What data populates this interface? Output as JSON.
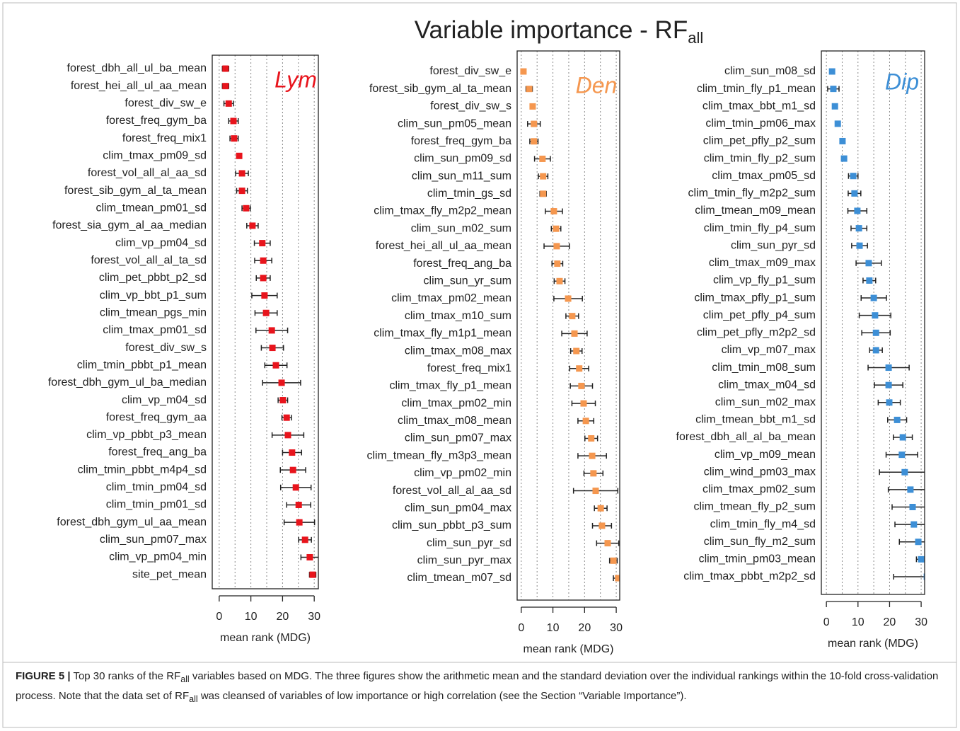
{
  "title": {
    "main": "Variable importance - RF",
    "sub": "all"
  },
  "chart_data": [
    {
      "type": "dot",
      "title": "Lym",
      "color": "#e8141c",
      "xlabel": "mean rank (MDG)",
      "xlim": [
        -2.2,
        31.3
      ],
      "xticks": [
        0,
        10,
        20,
        30
      ],
      "xgrid": [
        0,
        5,
        10,
        15,
        20,
        25,
        30
      ],
      "categories": [
        "forest_dbh_all_ul_ba_mean",
        "forest_hei_all_ul_aa_mean",
        "forest_div_sw_e",
        "forest_freq_gym_ba",
        "forest_freq_mix1",
        "clim_tmax_pm09_sd",
        "forest_vol_all_al_aa_sd",
        "forest_sib_gym_al_ta_mean",
        "clim_tmean_pm01_sd",
        "forest_sia_gym_al_aa_median",
        "clim_vp_pm04_sd",
        "forest_vol_all_al_ta_sd",
        "clim_pet_pbbt_p2_sd",
        "clim_vp_bbt_p1_sum",
        "clim_tmean_pgs_min",
        "clim_tmax_pm01_sd",
        "forest_div_sw_s",
        "clim_tmin_pbbt_p1_mean",
        "forest_dbh_gym_ul_ba_median",
        "clim_vp_m04_sd",
        "forest_freq_gym_aa",
        "clim_vp_pbbt_p3_mean",
        "forest_freq_ang_ba",
        "clim_tmin_pbbt_m4p4_sd",
        "clim_tmin_pm04_sd",
        "clim_tmin_pm01_sd",
        "forest_dbh_gym_ul_aa_mean",
        "clim_sun_pm07_max",
        "clim_vp_pm04_min",
        "site_pet_mean"
      ],
      "values": [
        2.0,
        2.0,
        3.0,
        4.5,
        4.7,
        6.3,
        7.2,
        7.2,
        8.5,
        10.5,
        13.6,
        13.9,
        13.9,
        14.3,
        14.8,
        16.6,
        16.8,
        17.9,
        19.7,
        20.1,
        21.3,
        21.7,
        23.0,
        23.3,
        24.2,
        25.1,
        25.3,
        27.1,
        28.6,
        29.5
      ],
      "errors": [
        1.0,
        1.0,
        1.5,
        1.5,
        1.3,
        0.5,
        2.0,
        1.7,
        1.3,
        1.8,
        2.5,
        2.7,
        2.2,
        4.0,
        3.5,
        5.0,
        3.5,
        3.5,
        6.0,
        1.5,
        1.5,
        5.0,
        3.0,
        4.0,
        4.8,
        3.8,
        4.8,
        2.0,
        2.8,
        1.0
      ]
    },
    {
      "type": "dot",
      "title": "Den",
      "color": "#f5974f",
      "xlabel": "mean rank (MDG)",
      "xlim": [
        -1.3,
        31.1
      ],
      "xticks": [
        0,
        10,
        20,
        30
      ],
      "xgrid": [
        0,
        5,
        10,
        15,
        20,
        25,
        30
      ],
      "categories": [
        "forest_div_sw_e",
        "forest_sib_gym_al_ta_mean",
        "forest_div_sw_s",
        "clim_sun_pm05_mean",
        "forest_freq_gym_ba",
        "clim_sun_pm09_sd",
        "clim_sun_m11_sum",
        "clim_tmin_gs_sd",
        "clim_tmax_fly_m2p2_mean",
        "clim_sun_m02_sum",
        "forest_hei_all_ul_aa_mean",
        "forest_freq_ang_ba",
        "clim_sun_yr_sum",
        "clim_tmax_pm02_mean",
        "clim_tmax_m10_sum",
        "clim_tmax_fly_m1p1_mean",
        "clim_tmax_m08_max",
        "forest_freq_mix1",
        "clim_tmax_fly_p1_mean",
        "clim_tmax_pm02_min",
        "clim_tmax_m08_mean",
        "clim_sun_pm07_max",
        "clim_tmean_fly_m3p3_mean",
        "clim_vp_pm02_min",
        "forest_vol_all_al_aa_sd",
        "clim_sun_pm04_max",
        "clim_sun_pbbt_p3_sum",
        "clim_sun_pyr_sd",
        "clim_sun_pyr_max",
        "clim_tmean_m07_sd"
      ],
      "values": [
        0.7,
        2.5,
        3.6,
        4.0,
        4.0,
        6.7,
        6.9,
        6.9,
        10.3,
        11.0,
        11.2,
        11.4,
        12.1,
        14.8,
        16.1,
        16.8,
        17.4,
        18.3,
        19.0,
        19.7,
        20.4,
        22.1,
        22.4,
        22.8,
        23.5,
        25.1,
        25.5,
        27.3,
        29.1,
        30.6
      ],
      "errors": [
        0.5,
        1.0,
        0.5,
        2.0,
        1.3,
        2.5,
        1.5,
        1.0,
        2.7,
        1.5,
        4.0,
        1.7,
        1.7,
        4.5,
        2.0,
        4.0,
        1.8,
        3.0,
        3.5,
        3.7,
        2.5,
        2.0,
        4.5,
        3.0,
        7.0,
        2.0,
        3.0,
        3.5,
        1.2,
        1.5
      ]
    },
    {
      "type": "dot",
      "title": "Dip",
      "color": "#3d8fd6",
      "xlabel": "mean rank (MDG)",
      "xlim": [
        -1.6,
        31.1
      ],
      "xticks": [
        0,
        10,
        20,
        30
      ],
      "xgrid": [
        0,
        5,
        10,
        15,
        20,
        25,
        30
      ],
      "categories": [
        "clim_sun_m08_sd",
        "clim_tmin_fly_p1_mean",
        "clim_tmax_bbt_m1_sd",
        "clim_tmin_pm06_max",
        "clim_pet_pfly_p2_sum",
        "clim_tmin_fly_p2_sum",
        "clim_tmax_pm05_sd",
        "clim_tmin_fly_m2p2_sum",
        "clim_tmean_m09_mean",
        "clim_tmin_fly_p4_sum",
        "clim_sun_pyr_sd",
        "clim_tmax_m09_max",
        "clim_vp_fly_p1_sum",
        "clim_tmax_pfly_p1_sum",
        "clim_pet_pfly_p4_sum",
        "clim_pet_pfly_m2p2_sd",
        "clim_vp_m07_max",
        "clim_tmin_m08_sum",
        "clim_tmax_m04_sd",
        "clim_sun_m02_max",
        "clim_tmean_bbt_m1_sd",
        "forest_dbh_all_al_ba_mean",
        "clim_vp_m09_mean",
        "clim_wind_pm03_max",
        "clim_tmax_pm02_sum",
        "clim_tmean_fly_p2_sum",
        "clim_tmin_fly_m4_sd",
        "clim_sun_fly_m2_sum",
        "clim_tmin_pm03_mean",
        "clim_tmax_pbbt_m2p2_sd"
      ],
      "values": [
        1.8,
        2.2,
        2.7,
        3.6,
        5.1,
        5.6,
        8.5,
        8.9,
        9.8,
        10.3,
        10.5,
        13.4,
        13.6,
        15.0,
        15.4,
        15.7,
        15.7,
        19.7,
        19.7,
        19.9,
        22.4,
        24.2,
        23.9,
        24.8,
        26.6,
        27.3,
        27.7,
        29.1,
        30.0,
        31.8
      ],
      "errors": [
        0.3,
        1.8,
        0.3,
        0.5,
        0.5,
        0.8,
        1.5,
        2.0,
        3.0,
        2.5,
        2.5,
        4.0,
        2.0,
        4.0,
        5.0,
        4.5,
        2.0,
        6.5,
        4.5,
        3.5,
        3.0,
        3.0,
        5.0,
        8.0,
        7.0,
        6.5,
        6.0,
        6.0,
        1.5,
        10.5
      ]
    }
  ],
  "caption": {
    "label": "FIGURE 5 |",
    "parts": [
      " Top 30 ranks of the RF",
      "all",
      " variables based on MDG. The three figures show the arithmetic mean and the standard deviation over the individual rankings within the 10-fold cross-validation process. Note that the data set of RF",
      "all",
      " was cleansed of variables of low importance or high correlation (see the Section “Variable Importance”)."
    ]
  }
}
